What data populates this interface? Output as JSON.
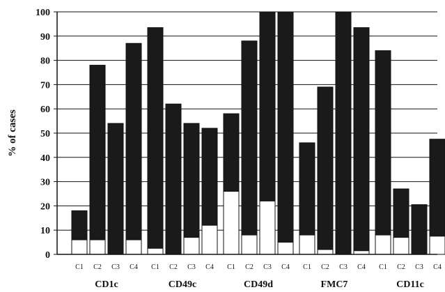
{
  "chart_data": {
    "type": "bar",
    "stacked": true,
    "ylabel": "% of cases",
    "ylim": [
      0,
      100
    ],
    "yticks": [
      0,
      10,
      20,
      30,
      40,
      50,
      60,
      70,
      80,
      90,
      100
    ],
    "grid": true,
    "groups": [
      "CD1c",
      "CD49c",
      "CD49d",
      "FMC7",
      "CD11c"
    ],
    "subcategories": [
      "C1",
      "C2",
      "C3",
      "C4"
    ],
    "series": [
      {
        "name": "",
        "color": "#ffffff",
        "values": [
          [
            6,
            6,
            0,
            6
          ],
          [
            2.5,
            0,
            7,
            12
          ],
          [
            26,
            8,
            22,
            5
          ],
          [
            8,
            2,
            0,
            1.5
          ],
          [
            8,
            7,
            0,
            7.5
          ]
        ]
      },
      {
        "name": "",
        "color": "#1a1a1a",
        "values": [
          [
            12,
            72,
            54,
            81
          ],
          [
            91,
            62,
            47,
            40
          ],
          [
            32,
            80,
            78,
            95
          ],
          [
            38,
            67,
            100,
            92
          ],
          [
            76,
            20,
            20.5,
            40
          ]
        ]
      }
    ]
  }
}
